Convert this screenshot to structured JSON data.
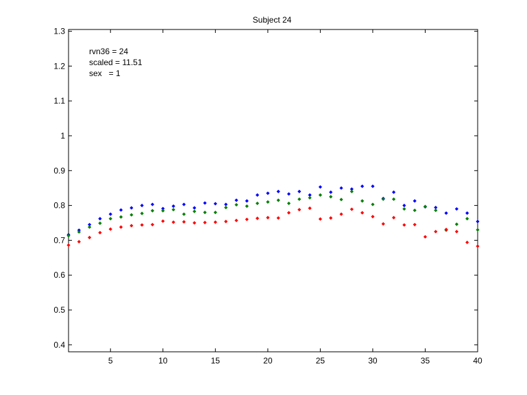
{
  "chart_data": {
    "type": "scatter",
    "title": "Subject 24",
    "xlabel": "",
    "ylabel": "",
    "xlim": [
      1,
      40
    ],
    "ylim": [
      0.38,
      1.305
    ],
    "xticks": [
      5,
      10,
      15,
      20,
      25,
      30,
      35,
      40
    ],
    "yticks": [
      0.4,
      0.5,
      0.6,
      0.7,
      0.8,
      0.9,
      1,
      1.1,
      1.2,
      1.3
    ],
    "ytick_labels": [
      "0.4",
      "0.5",
      "0.6",
      "0.7",
      "0.8",
      "0.9",
      "1",
      "1.1",
      "1.2",
      "1.3"
    ],
    "grid": false,
    "annotations": [
      "rvn36 = 24",
      "scaled = 11.51",
      "sex   = 1"
    ],
    "x": [
      1,
      2,
      3,
      4,
      5,
      6,
      7,
      8,
      9,
      10,
      11,
      12,
      13,
      14,
      15,
      16,
      17,
      18,
      19,
      20,
      21,
      22,
      23,
      24,
      25,
      26,
      27,
      28,
      29,
      30,
      31,
      32,
      33,
      34,
      35,
      36,
      37,
      38,
      39,
      40
    ],
    "series": [
      {
        "color": "#0000ff",
        "values": [
          0.716,
          0.729,
          0.745,
          0.762,
          0.775,
          0.787,
          0.793,
          0.8,
          0.803,
          0.791,
          0.798,
          0.803,
          0.793,
          0.807,
          0.805,
          0.803,
          0.815,
          0.813,
          0.83,
          0.835,
          0.84,
          0.833,
          0.84,
          0.83,
          0.853,
          0.838,
          0.85,
          0.847,
          0.855,
          0.855,
          0.82,
          0.838,
          0.8,
          0.813,
          0.796,
          0.794,
          0.778,
          0.79,
          0.778,
          0.754
        ]
      },
      {
        "color": "#008000",
        "values": [
          0.713,
          0.724,
          0.738,
          0.749,
          0.762,
          0.767,
          0.773,
          0.777,
          0.785,
          0.785,
          0.788,
          0.775,
          0.783,
          0.78,
          0.78,
          0.794,
          0.802,
          0.798,
          0.806,
          0.81,
          0.815,
          0.806,
          0.818,
          0.822,
          0.83,
          0.825,
          0.817,
          0.84,
          0.813,
          0.803,
          0.818,
          0.818,
          0.79,
          0.786,
          0.797,
          0.786,
          0.729,
          0.746,
          0.762,
          0.73
        ]
      },
      {
        "color": "#ff0000",
        "values": [
          0.686,
          0.696,
          0.708,
          0.722,
          0.732,
          0.738,
          0.742,
          0.744,
          0.745,
          0.755,
          0.752,
          0.753,
          0.75,
          0.751,
          0.752,
          0.754,
          0.757,
          0.76,
          0.763,
          0.765,
          0.764,
          0.779,
          0.788,
          0.792,
          0.761,
          0.764,
          0.775,
          0.789,
          0.779,
          0.768,
          0.747,
          0.765,
          0.744,
          0.745,
          0.71,
          0.725,
          0.731,
          0.725,
          0.694,
          0.683
        ]
      }
    ]
  }
}
